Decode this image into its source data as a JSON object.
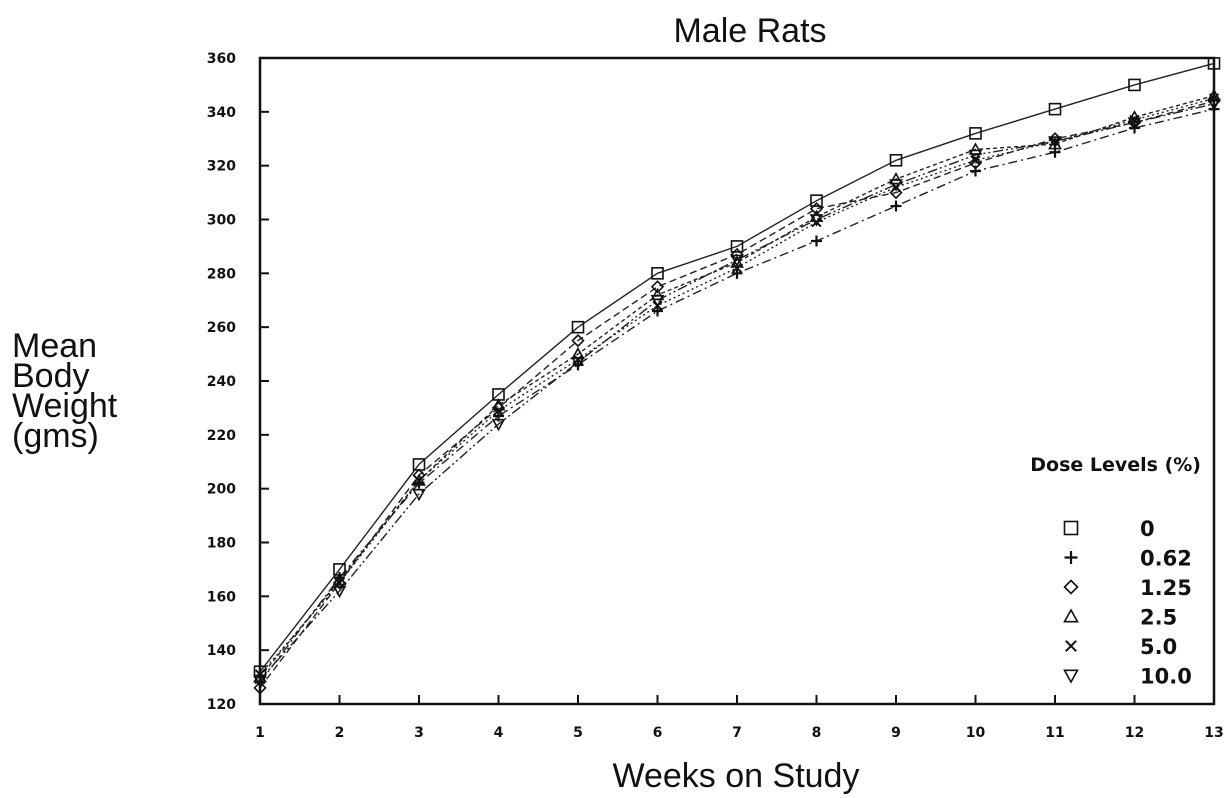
{
  "chart_data": {
    "type": "line",
    "title": "Male Rats",
    "xlabel": "Weeks on Study",
    "ylabel": [
      "Mean",
      "Body",
      "Weight",
      "(gms)"
    ],
    "xlim": [
      1,
      13
    ],
    "ylim": [
      120,
      360
    ],
    "x_ticks": [
      1,
      2,
      3,
      4,
      5,
      6,
      7,
      8,
      9,
      10,
      11,
      12,
      13
    ],
    "y_ticks": [
      120,
      140,
      160,
      180,
      200,
      220,
      240,
      260,
      280,
      300,
      320,
      340,
      360
    ],
    "grid": false,
    "legend_title": "Dose Levels (%)",
    "legend_position": "bottom-right",
    "x": [
      1,
      2,
      3,
      4,
      5,
      6,
      7,
      8,
      9,
      10,
      11,
      12,
      13
    ],
    "series": [
      {
        "name": "0",
        "marker": "square",
        "dash": "",
        "values": [
          132,
          170,
          209,
          235,
          260,
          280,
          290,
          307,
          322,
          332,
          341,
          350,
          358
        ]
      },
      {
        "name": "0.62",
        "marker": "plus",
        "dash": "9,4,2,4",
        "values": [
          128,
          167,
          202,
          227,
          246,
          266,
          280,
          292,
          305,
          318,
          325,
          334,
          341
        ]
      },
      {
        "name": "1.25",
        "marker": "diamond",
        "dash": "7,4",
        "values": [
          126,
          165,
          205,
          230,
          255,
          275,
          287,
          304,
          310,
          321,
          330,
          336,
          344
        ]
      },
      {
        "name": "2.5",
        "marker": "triangle",
        "dash": "4,3",
        "values": [
          130,
          166,
          203,
          231,
          250,
          272,
          284,
          301,
          315,
          326,
          328,
          338,
          346
        ]
      },
      {
        "name": "5.0",
        "marker": "x",
        "dash": "2,3",
        "values": [
          131,
          165,
          203,
          229,
          248,
          268,
          282,
          299,
          312,
          322,
          329,
          337,
          345
        ]
      },
      {
        "name": "10.0",
        "marker": "triangle-down",
        "dash": "10,3,2,3,2,3",
        "values": [
          129,
          162,
          198,
          224,
          247,
          270,
          285,
          300,
          313,
          324,
          329,
          336,
          343
        ]
      }
    ]
  }
}
